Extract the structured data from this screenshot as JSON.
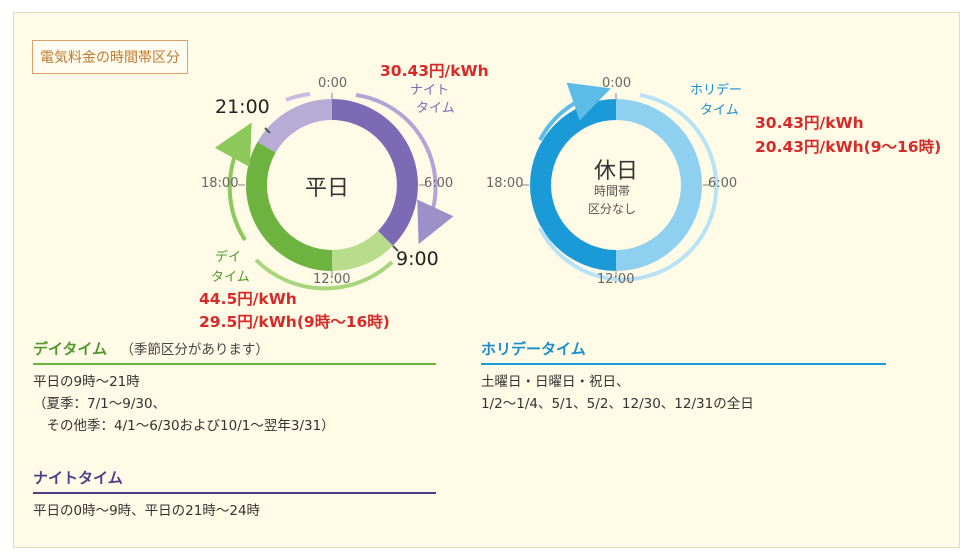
{
  "badge": "電気料金の時間帯区分",
  "weekday": {
    "center_label": "平日",
    "time_labels": {
      "t0": "0:00",
      "t6": "6:00",
      "t12": "12:00",
      "t18": "18:00",
      "t21": "21:00",
      "t9": "9:00"
    },
    "night_label_1": "ナイト",
    "night_label_2": "タイム",
    "night_price": "30.43円/kWh",
    "day_label_1": "デイ",
    "day_label_2": "タイム",
    "day_price_1": "44.5円/kWh",
    "day_price_2": "29.5円/kWh(9時～16時)",
    "colors": {
      "night": "#7b6bb5",
      "night_light": "#b7acd6",
      "day": "#6db33f",
      "day_light": "#b6dc8c"
    }
  },
  "holiday": {
    "center_label": "休日",
    "center_sub_1": "時間帯",
    "center_sub_2": "区分なし",
    "time_labels": {
      "t0": "0:00",
      "t6": "6:00",
      "t12": "12:00",
      "t18": "18:00"
    },
    "label_1": "ホリデー",
    "label_2": "タイム",
    "price_1": "30.43円/kWh",
    "price_2": "20.43円/kWh(9～16時)",
    "colors": {
      "main": "#1a9ad6",
      "light": "#8fd0f0"
    }
  },
  "sections": {
    "day": {
      "title": "デイタイム",
      "note": "（季節区分があります）",
      "lines": [
        "平日の9時～21時",
        "（夏季：7/1～9/30、",
        "　その他季：4/1～6/30および10/1～翌年3/31）"
      ],
      "color": "#6db33f"
    },
    "night": {
      "title": "ナイトタイム",
      "lines": [
        "平日の0時～9時、平日の21時～24時"
      ],
      "color": "#4b3f8a"
    },
    "holiday": {
      "title": "ホリデータイム",
      "lines": [
        "土曜日・日曜日・祝日、",
        "1/2～1/4、5/1、5/2、12/30、12/31の全日"
      ],
      "color": "#1a8fd0"
    }
  }
}
